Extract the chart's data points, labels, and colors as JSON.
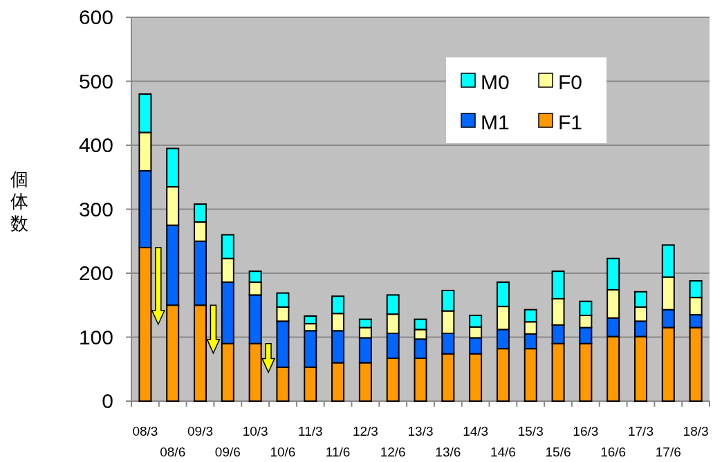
{
  "chart_data": {
    "type": "bar",
    "stacked": true,
    "ylabel": "個体数",
    "categories": [
      "08/3",
      "08/6",
      "09/3",
      "09/6",
      "10/3",
      "10/6",
      "11/3",
      "11/6",
      "12/3",
      "12/6",
      "13/3",
      "13/6",
      "14/3",
      "14/6",
      "15/3",
      "15/6",
      "16/3",
      "16/6",
      "17/3",
      "17/6",
      "18/3"
    ],
    "series": [
      {
        "name": "F1",
        "color": "#ff9900",
        "values": [
          240,
          150,
          150,
          90,
          90,
          53,
          53,
          60,
          60,
          67,
          67,
          74,
          74,
          82,
          82,
          90,
          90,
          101,
          101,
          115,
          115
        ]
      },
      {
        "name": "M1",
        "color": "#0066ff",
        "values": [
          120,
          125,
          100,
          96,
          76,
          72,
          57,
          50,
          39,
          39,
          30,
          32,
          25,
          30,
          23,
          29,
          25,
          29,
          24,
          28,
          20
        ]
      },
      {
        "name": "F0",
        "color": "#ffff99",
        "values": [
          60,
          60,
          30,
          37,
          20,
          22,
          11,
          27,
          16,
          30,
          15,
          35,
          17,
          36,
          19,
          41,
          19,
          44,
          22,
          51,
          27
        ]
      },
      {
        "name": "M0",
        "color": "#00ffff",
        "values": [
          60,
          60,
          28,
          37,
          17,
          22,
          12,
          27,
          13,
          30,
          16,
          32,
          18,
          38,
          19,
          43,
          22,
          49,
          24,
          50,
          26
        ]
      }
    ],
    "ylim": [
      0,
      600
    ],
    "yticks": [
      0,
      100,
      200,
      300,
      400,
      500,
      600
    ],
    "grid": "y",
    "legend": "top right"
  }
}
